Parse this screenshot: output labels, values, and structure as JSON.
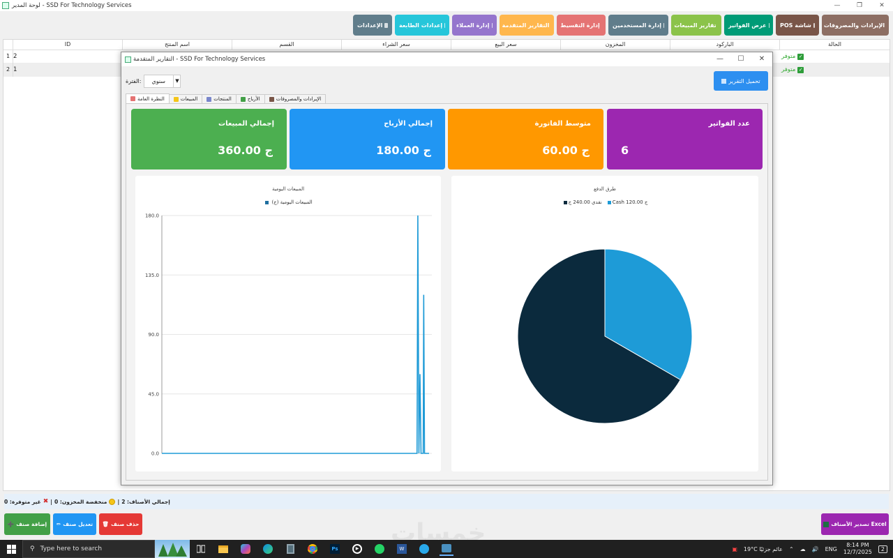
{
  "window": {
    "title": "لوحة المدير - SSD For Technology Services"
  },
  "toolbar": [
    {
      "label": "الإيرادات والمصروفات",
      "color": "#8d6e63",
      "width": 96
    },
    {
      "label": "POS شاشة",
      "color": "#795548",
      "width": 62
    },
    {
      "label": "عرض الفواتير",
      "color": "#009b76",
      "width": 70
    },
    {
      "label": "تقارير المبيعات",
      "color": "#8bc34a",
      "width": 72
    },
    {
      "label": "إدارة المستخدمين",
      "color": "#607d8b",
      "width": 86
    },
    {
      "label": "إدارة التقسيط",
      "color": "#e57373",
      "width": 70
    },
    {
      "label": "التقارير المتقدمة",
      "color": "#ffb74d",
      "width": 78
    },
    {
      "label": "إدارة العملاء",
      "color": "#9575cd",
      "width": 64
    },
    {
      "label": "إعدادات الطابعة",
      "color": "#26c6da",
      "width": 78
    },
    {
      "label": "الإعدادات",
      "color": "#607d8b",
      "width": 56
    }
  ],
  "grid": {
    "columns": [
      "الحالة",
      "الباركود",
      "المخزون",
      "سعر البيع",
      "سعر الشراء",
      "القسم",
      "اسم المنتج",
      "ID"
    ],
    "rows": [
      {
        "num": "1",
        "id": "2",
        "status": "متوفر"
      },
      {
        "num": "2",
        "id": "1",
        "status": "متوفر"
      }
    ]
  },
  "dialog": {
    "title": "التقارير المتقدمة - SSD For Technology Services",
    "download_label": "تحميل التقرير",
    "period_label": "الفترة:",
    "period_value": "سنوي",
    "tabs": [
      "النظرة العامة",
      "المبيعات",
      "المنتجات",
      "الأرباح",
      "الإيرادات والمصروفات"
    ],
    "cards": [
      {
        "label": "إجمالي المبيعات",
        "value": "360.00 ج",
        "color": "#4caf50"
      },
      {
        "label": "إجمالي الأرباح",
        "value": "180.00 ج",
        "color": "#2196f3"
      },
      {
        "label": "متوسط الفاتورة",
        "value": "60.00 ج",
        "color": "#ff9800"
      },
      {
        "label": "عدد الفواتير",
        "value": "6",
        "color": "#9c27b0"
      }
    ]
  },
  "chart_data": [
    {
      "type": "line",
      "title": "المبيعات اليومية",
      "series": [
        {
          "name": "المبيعات اليومية (ج)",
          "color": "#1f9bd7",
          "points": [
            [
              0,
              0
            ],
            [
              0.955,
              0
            ],
            [
              0.958,
              180
            ],
            [
              0.962,
              0
            ],
            [
              0.966,
              60
            ],
            [
              0.97,
              0
            ],
            [
              0.978,
              0
            ],
            [
              0.98,
              120
            ],
            [
              0.983,
              0
            ],
            [
              1,
              0
            ]
          ]
        }
      ],
      "yticks": [
        "180.0",
        "135.0",
        "90.0",
        "45.0",
        "0.0"
      ],
      "ylim": [
        0,
        180
      ],
      "grid": true,
      "legend": "top"
    },
    {
      "type": "pie",
      "title": "طرق الدفع",
      "slices": [
        {
          "label": "Cash 120.00 ج",
          "value": 120,
          "color": "#1e9bd7"
        },
        {
          "label": "نقدي 240.00 ج",
          "value": 240,
          "color": "#0b2a3d"
        }
      ],
      "legend": "top"
    }
  ],
  "status": {
    "total_label": "إجمالي الأصناف: 2",
    "low_label": "منخفضة المخزون: 0",
    "out_label": "غير متوفرة: 0",
    "sep": "|"
  },
  "bottom": {
    "export_label": "تصدير الأصناف Excel",
    "add_label": "إضافة صنف",
    "edit_label": "تعديل صنف",
    "delete_label": "حذف صنف"
  },
  "taskbar": {
    "search_placeholder": "Type here to search",
    "weather": "19°C عائم جزئيًا",
    "lang": "ENG",
    "time": "8:14 PM",
    "date": "12/7/2025",
    "notif": "2"
  },
  "watermark": "خمسات"
}
